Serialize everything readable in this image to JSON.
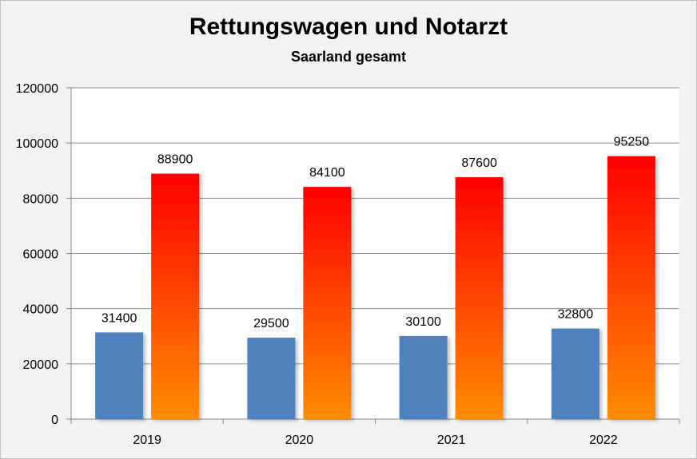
{
  "chart_data": {
    "type": "bar",
    "title": "Rettungswagen und Notarzt",
    "subtitle": "Saarland gesamt",
    "categories": [
      "2019",
      "2020",
      "2021",
      "2022"
    ],
    "series": [
      {
        "values": [
          31400,
          29500,
          30100,
          32800
        ],
        "color": "#4f81bd"
      },
      {
        "values": [
          88900,
          84100,
          87600,
          95250
        ],
        "color_top": "#ff0000",
        "color_bottom": "#ff8c00"
      }
    ],
    "ylim": [
      0,
      120000
    ],
    "yticks": [
      "0",
      "20000",
      "40000",
      "60000",
      "80000",
      "100000",
      "120000"
    ],
    "grid": true,
    "legend": "none"
  }
}
